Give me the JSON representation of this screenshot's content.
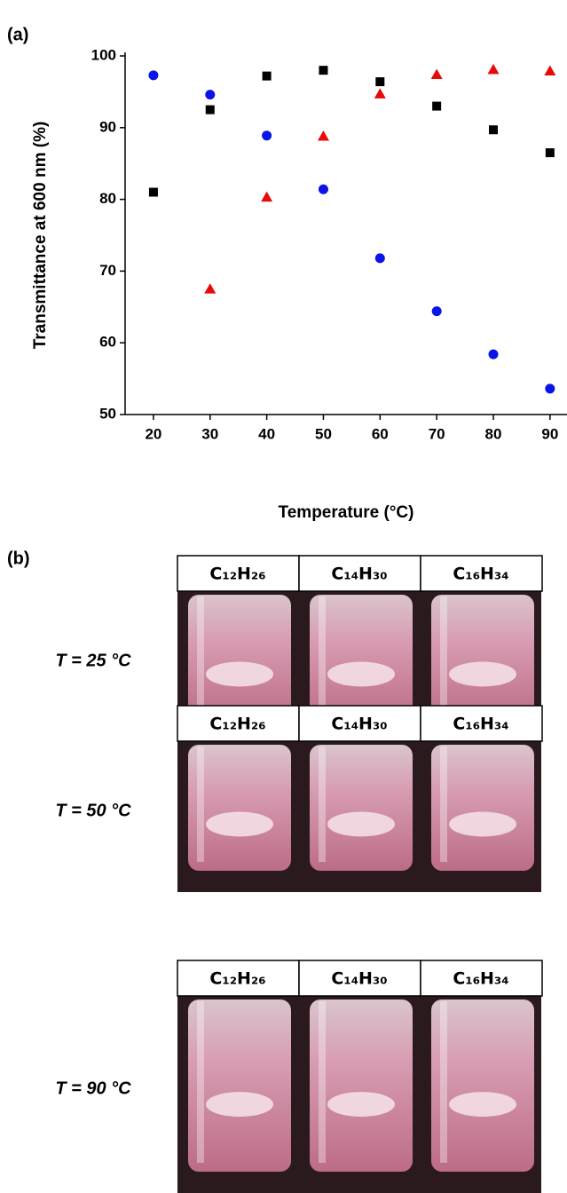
{
  "chart_data": {
    "type": "scatter",
    "x_label": "Temperature (°C)",
    "y_label": "Transmittance at 600 nm (%)",
    "x": [
      20,
      30,
      40,
      50,
      60,
      70,
      80,
      90
    ],
    "series": [
      {
        "color": "#000000",
        "marker": "square",
        "values": [
          81,
          92.5,
          97.2,
          98,
          96.4,
          93,
          89.7,
          86.5
        ]
      },
      {
        "color": "#0a14e6",
        "marker": "circle",
        "values": [
          97.3,
          94.6,
          88.9,
          81.4,
          71.8,
          64.4,
          58.4,
          53.6
        ]
      },
      {
        "color": "#e60a0a",
        "marker": "triangle",
        "values": [
          null,
          67.5,
          80.3,
          88.8,
          94.7,
          97.4,
          98.1,
          97.9
        ]
      }
    ],
    "xlim": [
      15,
      93
    ],
    "xticks": [
      20,
      30,
      40,
      50,
      60,
      70,
      80,
      90
    ],
    "ylim": [
      50,
      100
    ],
    "yticks": [
      50,
      60,
      70,
      80,
      90,
      100
    ],
    "grid": false
  },
  "panel_labels": [
    "(a)",
    "(b)"
  ],
  "photos": [
    {
      "temperature": "T = 25 °C",
      "labels": [
        {
          "text": "C₁₂H₂₆",
          "color": "#0a14e6"
        },
        {
          "text": "C₁₄H₃₀",
          "color": "#000000"
        },
        {
          "text": "C₁₆H₃₄",
          "color": "#e60a0a"
        }
      ]
    },
    {
      "temperature": "T = 50 °C",
      "labels": [
        {
          "text": "C₁₂H₂₆",
          "color": "#0a14e6"
        },
        {
          "text": "C₁₄H₃₀",
          "color": "#000000"
        },
        {
          "text": "C₁₆H₃₄",
          "color": "#e60a0a"
        }
      ]
    },
    {
      "temperature": "T = 90 °C",
      "labels": [
        {
          "text": "C₁₂H₂₆",
          "color": "#0a14e6"
        },
        {
          "text": "C₁₄H₃₀",
          "color": "#000000"
        },
        {
          "text": "C₁₆H₃₄",
          "color": "#e60a0a"
        }
      ]
    }
  ]
}
